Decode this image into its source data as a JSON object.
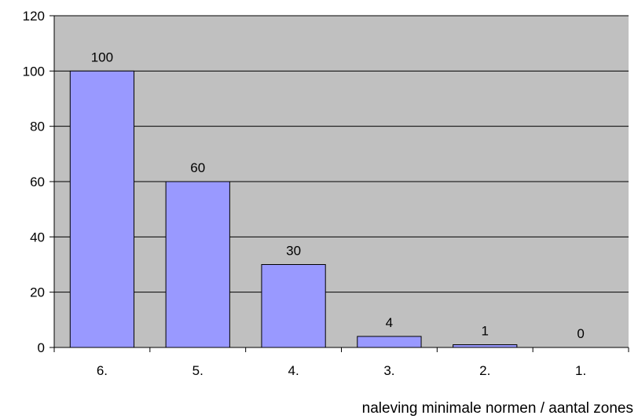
{
  "chart_data": {
    "type": "bar",
    "categories": [
      "6.",
      "5.",
      "4.",
      "3.",
      "2.",
      "1."
    ],
    "values": [
      100,
      60,
      30,
      4,
      1,
      0
    ],
    "data_labels": [
      "100",
      "60",
      "30",
      "4",
      "1",
      "0"
    ],
    "title": "",
    "xlabel": "naleving minimale normen / aantal zones",
    "ylabel": "",
    "ylim": [
      0,
      120
    ],
    "yticks": [
      0,
      20,
      40,
      60,
      80,
      100,
      120
    ],
    "ytick_labels": [
      "0",
      "20",
      "40",
      "60",
      "80",
      "100",
      "120"
    ],
    "grid": true,
    "legend": "none",
    "colors": {
      "plot_background": "#c0c0c0",
      "bar_fill": "#9999ff",
      "bar_stroke": "#000000",
      "gridline": "#000000"
    }
  }
}
